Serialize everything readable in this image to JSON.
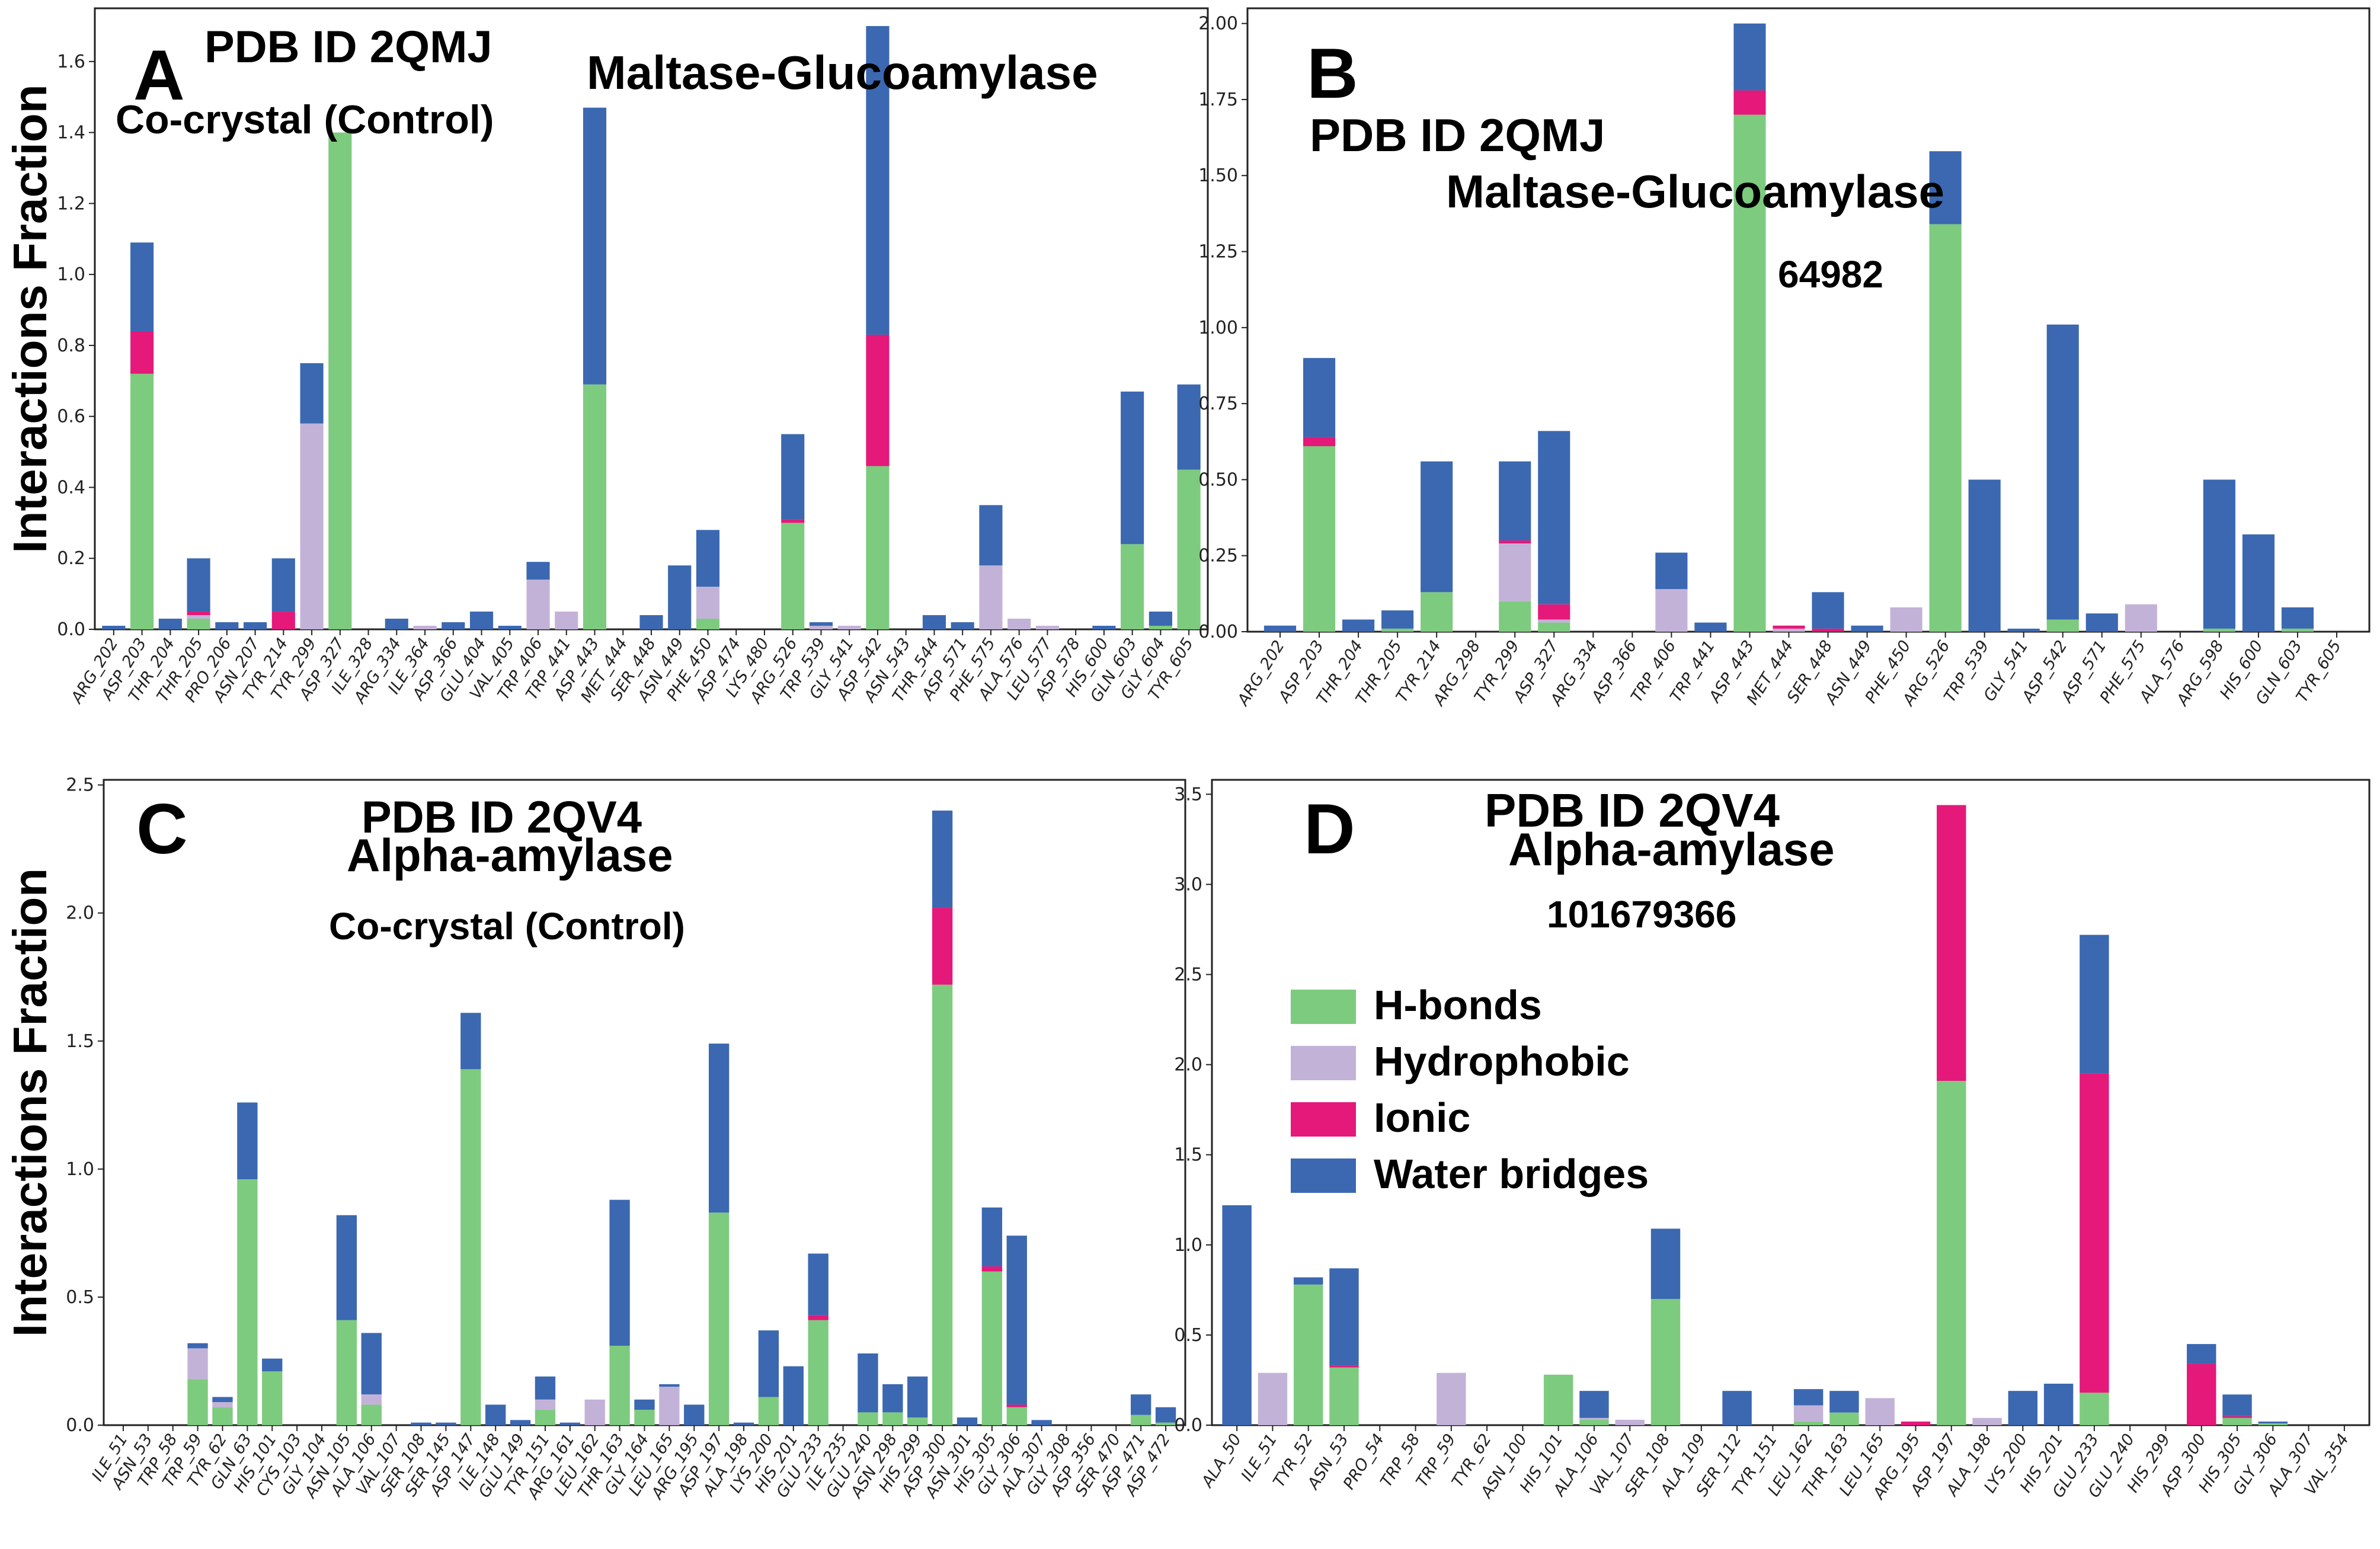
{
  "colors": {
    "hbonds": "#7dcb7e",
    "hydrophobic": "#c3b2d8",
    "ionic": "#e4197a",
    "water": "#3b68b1"
  },
  "legend": [
    "H-bonds",
    "Hydrophobic",
    "Ionic",
    "Water bridges"
  ],
  "chart_data": [
    {
      "type": "bar",
      "stacked": true,
      "panel": "A",
      "annotations": [
        "A",
        "PDB ID  2QMJ",
        "Co-crystal (Control)",
        "Maltase-Glucoamylase"
      ],
      "ylabel": "Interactions Fraction",
      "ylim": [
        0,
        1.75
      ],
      "yticks": [
        "0.0",
        "0.2",
        "0.4",
        "0.6",
        "0.8",
        "1.0",
        "1.2",
        "1.4",
        "1.6"
      ],
      "categories": [
        "ARG_202",
        "ASP_203",
        "THR_204",
        "THR_205",
        "PRO_206",
        "ASN_207",
        "TYR_214",
        "TYR_299",
        "ASP_327",
        "ILE_328",
        "ARG_334",
        "ILE_364",
        "ASP_366",
        "GLU_404",
        "VAL_405",
        "TRP_406",
        "TRP_441",
        "ASP_443",
        "MET_444",
        "SER_448",
        "ASN_449",
        "PHE_450",
        "ASP_474",
        "LYS_480",
        "ARG_526",
        "TRP_539",
        "GLY_541",
        "ASP_542",
        "ASN_543",
        "THR_544",
        "ASP_571",
        "PHE_575",
        "ALA_576",
        "LEU_577",
        "ASP_578",
        "HIS_600",
        "GLN_603",
        "GLY_604",
        "TYR_605"
      ],
      "series": [
        {
          "name": "H-bonds",
          "values": [
            0,
            0.72,
            0,
            0.03,
            0,
            0,
            0,
            0,
            1.4,
            0,
            0,
            0,
            0,
            0,
            0,
            0,
            0,
            0.69,
            0,
            0,
            0,
            0.03,
            0,
            0,
            0.3,
            0,
            0,
            0.46,
            0,
            0,
            0,
            0,
            0,
            0,
            0,
            0,
            0.24,
            0.01,
            0.45
          ]
        },
        {
          "name": "Hydrophobic",
          "values": [
            0,
            0,
            0,
            0.01,
            0,
            0,
            0,
            0.58,
            0,
            0,
            0,
            0.01,
            0,
            0,
            0,
            0.14,
            0.05,
            0,
            0,
            0,
            0,
            0.09,
            0,
            0,
            0,
            0.01,
            0.01,
            0,
            0,
            0,
            0,
            0.18,
            0.03,
            0.01,
            0,
            0,
            0,
            0,
            0
          ]
        },
        {
          "name": "Ionic",
          "values": [
            0,
            0.12,
            0,
            0.01,
            0,
            0,
            0.05,
            0,
            0,
            0,
            0,
            0,
            0,
            0,
            0,
            0,
            0,
            0,
            0,
            0,
            0,
            0,
            0,
            0,
            0.01,
            0,
            0,
            0.37,
            0,
            0,
            0,
            0,
            0,
            0,
            0,
            0,
            0,
            0,
            0
          ]
        },
        {
          "name": "Water bridges",
          "values": [
            0.01,
            0.25,
            0.03,
            0.15,
            0.02,
            0.02,
            0.15,
            0.17,
            0,
            0,
            0.03,
            0,
            0.02,
            0.05,
            0.01,
            0.05,
            0,
            0.78,
            0,
            0.04,
            0.18,
            0.16,
            0,
            0,
            0.24,
            0.01,
            0,
            0.87,
            0,
            0.04,
            0.02,
            0.17,
            0,
            0,
            0,
            0.01,
            0.43,
            0.04,
            0.24
          ]
        }
      ]
    },
    {
      "type": "bar",
      "stacked": true,
      "panel": "B",
      "annotations": [
        "B",
        "PDB ID  2QMJ",
        "Maltase-Glucoamylase",
        "64982"
      ],
      "ylim": [
        0,
        2.05
      ],
      "yticks": [
        "0.00",
        "0.25",
        "0.50",
        "0.75",
        "1.00",
        "1.25",
        "1.50",
        "1.75",
        "2.00"
      ],
      "categories": [
        "ARG_202",
        "ASP_203",
        "THR_204",
        "THR_205",
        "TYR_214",
        "ARG_298",
        "TYR_299",
        "ASP_327",
        "ARG_334",
        "ASP_366",
        "TRP_406",
        "TRP_441",
        "ASP_443",
        "MET_444",
        "SER_448",
        "ASN_449",
        "PHE_450",
        "ARG_526",
        "TRP_539",
        "GLY_541",
        "ASP_542",
        "ASP_571",
        "PHE_575",
        "ALA_576",
        "ARG_598",
        "HIS_600",
        "GLN_603",
        "TYR_605"
      ],
      "series": [
        {
          "name": "H-bonds",
          "values": [
            0,
            0.61,
            0,
            0.01,
            0.13,
            0,
            0.1,
            0.03,
            0,
            0,
            0,
            0,
            1.7,
            0,
            0,
            0,
            0,
            1.34,
            0,
            0,
            0.04,
            0,
            0,
            0,
            0.01,
            0,
            0.01,
            0
          ]
        },
        {
          "name": "Hydrophobic",
          "values": [
            0,
            0,
            0,
            0,
            0,
            0,
            0.19,
            0.01,
            0,
            0,
            0.14,
            0,
            0,
            0.01,
            0,
            0,
            0.08,
            0,
            0,
            0,
            0,
            0,
            0.09,
            0,
            0,
            0,
            0,
            0
          ]
        },
        {
          "name": "Ionic",
          "values": [
            0,
            0.03,
            0,
            0,
            0,
            0,
            0.01,
            0.05,
            0,
            0,
            0,
            0,
            0.08,
            0.01,
            0.01,
            0,
            0,
            0,
            0,
            0,
            0,
            0,
            0,
            0,
            0,
            0,
            0,
            0
          ]
        },
        {
          "name": "Water bridges",
          "values": [
            0.02,
            0.26,
            0.04,
            0.06,
            0.43,
            0,
            0.26,
            0.57,
            0,
            0,
            0.12,
            0.03,
            0.22,
            0,
            0.12,
            0.02,
            0,
            0.24,
            0.5,
            0.01,
            0.97,
            0.06,
            0,
            0,
            0.49,
            0.32,
            0.07,
            0
          ]
        }
      ]
    },
    {
      "type": "bar",
      "stacked": true,
      "panel": "C",
      "annotations": [
        "C",
        "PDB ID  2QV4",
        "Alpha-amylase",
        "Co-crystal (Control)"
      ],
      "ylabel": "Interactions Fraction",
      "ylim": [
        0,
        2.52
      ],
      "yticks": [
        "0.0",
        "0.5",
        "1.0",
        "1.5",
        "2.0",
        "2.5"
      ],
      "categories": [
        "ILE_51",
        "ASN_53",
        "TRP_58",
        "TRP_59",
        "TYR_62",
        "GLN_63",
        "HIS_101",
        "CYS_103",
        "GLY_104",
        "ASN_105",
        "ALA_106",
        "VAL_107",
        "SER_108",
        "SER_145",
        "ASP_147",
        "ILE_148",
        "GLU_149",
        "TYR_151",
        "ARG_161",
        "LEU_162",
        "THR_163",
        "GLY_164",
        "LEU_165",
        "ARG_195",
        "ASP_197",
        "ALA_198",
        "LYS_200",
        "HIS_201",
        "GLU_233",
        "ILE_235",
        "GLU_240",
        "ASN_298",
        "HIS_299",
        "ASP_300",
        "ASN_301",
        "HIS_305",
        "GLY_306",
        "ALA_307",
        "GLY_308",
        "ASP_356",
        "SER_470",
        "ASP_471",
        "ASP_472"
      ],
      "series": [
        {
          "name": "H-bonds",
          "values": [
            0,
            0,
            0,
            0.18,
            0.07,
            0.96,
            0.21,
            0,
            0,
            0.41,
            0.08,
            0,
            0,
            0,
            1.39,
            0,
            0,
            0.06,
            0,
            0,
            0.31,
            0.06,
            0,
            0,
            0.83,
            0,
            0.11,
            0,
            0.41,
            0,
            0.05,
            0.05,
            0.03,
            1.72,
            0,
            0.6,
            0.07,
            0,
            0,
            0,
            0,
            0.04,
            0.01
          ]
        },
        {
          "name": "Hydrophobic",
          "values": [
            0,
            0,
            0,
            0.12,
            0.02,
            0,
            0,
            0,
            0,
            0,
            0.04,
            0,
            0,
            0,
            0,
            0,
            0,
            0.04,
            0,
            0.1,
            0,
            0,
            0.15,
            0,
            0,
            0,
            0,
            0,
            0,
            0,
            0,
            0,
            0,
            0,
            0,
            0,
            0,
            0,
            0,
            0,
            0,
            0,
            0
          ]
        },
        {
          "name": "Ionic",
          "values": [
            0,
            0,
            0,
            0,
            0,
            0,
            0,
            0,
            0,
            0,
            0,
            0,
            0,
            0,
            0,
            0,
            0,
            0,
            0,
            0,
            0,
            0,
            0,
            0,
            0,
            0,
            0,
            0,
            0.02,
            0,
            0,
            0,
            0,
            0.3,
            0,
            0.02,
            0.01,
            0,
            0,
            0,
            0,
            0,
            0
          ]
        },
        {
          "name": "Water bridges",
          "values": [
            0,
            0,
            0,
            0.02,
            0.02,
            0.3,
            0.05,
            0,
            0,
            0.41,
            0.24,
            0,
            0.01,
            0.01,
            0.22,
            0.08,
            0.02,
            0.09,
            0.01,
            0,
            0.57,
            0.04,
            0.01,
            0.08,
            0.66,
            0.01,
            0.26,
            0.23,
            0.24,
            0,
            0.23,
            0.11,
            0.16,
            0.38,
            0.03,
            0.23,
            0.66,
            0.02,
            0,
            0,
            0,
            0.08,
            0.06
          ]
        }
      ]
    },
    {
      "type": "bar",
      "stacked": true,
      "panel": "D",
      "annotations": [
        "D",
        "PDB ID  2QV4",
        "Alpha-amylase",
        "101679366"
      ],
      "ylim": [
        0,
        3.58
      ],
      "yticks": [
        "0.0",
        "0.5",
        "1.0",
        "1.5",
        "2.0",
        "2.5",
        "3.0",
        "3.5"
      ],
      "legend_position": "center-left",
      "categories": [
        "ALA_50",
        "ILE_51",
        "TYR_52",
        "ASN_53",
        "PRO_54",
        "TRP_58",
        "TRP_59",
        "TYR_62",
        "ASN_100",
        "HIS_101",
        "ALA_106",
        "VAL_107",
        "SER_108",
        "ALA_109",
        "SER_112",
        "TYR_151",
        "LEU_162",
        "THR_163",
        "LEU_165",
        "ARG_195",
        "ASP_197",
        "ALA_198",
        "LYS_200",
        "HIS_201",
        "GLU_233",
        "GLU_240",
        "HIS_299",
        "ASP_300",
        "HIS_305",
        "GLY_306",
        "ALA_307",
        "VAL_354"
      ],
      "series": [
        {
          "name": "H-bonds",
          "values": [
            0,
            0,
            0.78,
            0.32,
            0,
            0,
            0,
            0,
            0,
            0.28,
            0.03,
            0,
            0.7,
            0,
            0,
            0,
            0.02,
            0.07,
            0,
            0,
            1.91,
            0,
            0,
            0,
            0.18,
            0,
            0,
            0,
            0.04,
            0.01,
            0,
            0
          ]
        },
        {
          "name": "Hydrophobic",
          "values": [
            0,
            0.29,
            0,
            0,
            0,
            0,
            0.29,
            0,
            0,
            0,
            0.01,
            0.03,
            0,
            0,
            0,
            0,
            0.09,
            0,
            0.15,
            0,
            0,
            0.04,
            0,
            0,
            0,
            0,
            0,
            0,
            0,
            0,
            0,
            0
          ]
        },
        {
          "name": "Ionic",
          "values": [
            0,
            0,
            0,
            0.01,
            0,
            0,
            0,
            0,
            0,
            0,
            0,
            0,
            0,
            0,
            0,
            0,
            0,
            0,
            0,
            0.02,
            1.53,
            0,
            0,
            0,
            1.77,
            0,
            0,
            0.34,
            0.01,
            0,
            0,
            0
          ]
        },
        {
          "name": "Water bridges",
          "values": [
            1.22,
            0,
            0.04,
            0.54,
            0,
            0,
            0,
            0,
            0,
            0,
            0.15,
            0,
            0.39,
            0,
            0.19,
            0,
            0.09,
            0.12,
            0,
            0,
            0,
            0,
            0.19,
            0.23,
            0.77,
            0,
            0,
            0.11,
            0.12,
            0.01,
            0,
            0
          ]
        }
      ]
    }
  ]
}
